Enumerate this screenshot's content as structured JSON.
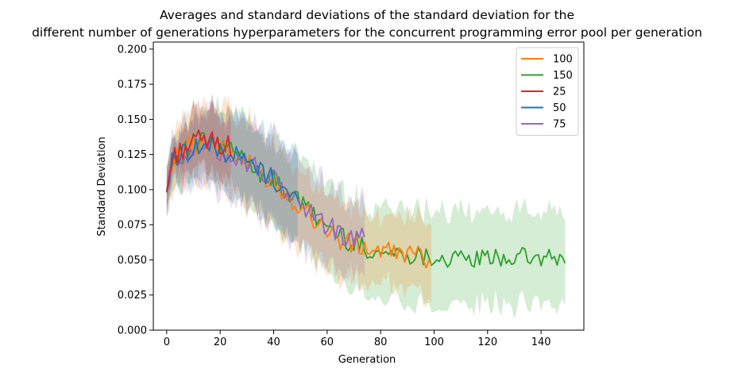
{
  "chart_data": {
    "type": "line",
    "title_line1": "Averages and standard deviations of the standard deviation for the",
    "title_line2": "different number of generations hyperparameters for the concurrent programming error pool per generation",
    "xlabel": "Generation",
    "ylabel": "Standard Deviation",
    "xlim": [
      -5,
      156
    ],
    "ylim": [
      0,
      0.205
    ],
    "xticks": [
      0,
      20,
      40,
      60,
      80,
      100,
      120,
      140
    ],
    "xtick_labels": [
      "0",
      "20",
      "40",
      "60",
      "80",
      "100",
      "120",
      "140"
    ],
    "yticks": [
      0,
      0.025,
      0.05,
      0.075,
      0.1,
      0.125,
      0.15,
      0.175,
      0.2
    ],
    "ytick_labels": [
      "0.000",
      "0.025",
      "0.050",
      "0.075",
      "0.100",
      "0.125",
      "0.150",
      "0.175",
      "0.200"
    ],
    "grid": false,
    "legend_position": "top-right",
    "series": [
      {
        "name": "100",
        "color": "#ff7f0e",
        "generations": 100,
        "key_points": [
          [
            0,
            0.098
          ],
          [
            2,
            0.12
          ],
          [
            5,
            0.127
          ],
          [
            10,
            0.133
          ],
          [
            15,
            0.135
          ],
          [
            20,
            0.13
          ],
          [
            25,
            0.125
          ],
          [
            30,
            0.118
          ],
          [
            35,
            0.112
          ],
          [
            40,
            0.105
          ],
          [
            45,
            0.097
          ],
          [
            50,
            0.089
          ],
          [
            55,
            0.08
          ],
          [
            60,
            0.072
          ],
          [
            65,
            0.064
          ],
          [
            70,
            0.06
          ],
          [
            75,
            0.058
          ],
          [
            80,
            0.056
          ],
          [
            90,
            0.055
          ],
          [
            99,
            0.05
          ]
        ],
        "std_key_points": [
          [
            0,
            0.014
          ],
          [
            5,
            0.02
          ],
          [
            15,
            0.028
          ],
          [
            30,
            0.03
          ],
          [
            45,
            0.028
          ],
          [
            60,
            0.026
          ],
          [
            75,
            0.024
          ],
          [
            90,
            0.024
          ],
          [
            99,
            0.024
          ]
        ]
      },
      {
        "name": "150",
        "color": "#2ca02c",
        "generations": 150,
        "key_points": [
          [
            0,
            0.098
          ],
          [
            2,
            0.12
          ],
          [
            5,
            0.125
          ],
          [
            10,
            0.132
          ],
          [
            15,
            0.134
          ],
          [
            20,
            0.131
          ],
          [
            25,
            0.126
          ],
          [
            30,
            0.12
          ],
          [
            35,
            0.113
          ],
          [
            40,
            0.106
          ],
          [
            45,
            0.098
          ],
          [
            50,
            0.09
          ],
          [
            55,
            0.082
          ],
          [
            60,
            0.074
          ],
          [
            65,
            0.067
          ],
          [
            70,
            0.062
          ],
          [
            75,
            0.058
          ],
          [
            80,
            0.055
          ],
          [
            90,
            0.054
          ],
          [
            100,
            0.052
          ],
          [
            110,
            0.05
          ],
          [
            120,
            0.051
          ],
          [
            130,
            0.052
          ],
          [
            140,
            0.051
          ],
          [
            149,
            0.05
          ]
        ],
        "std_key_points": [
          [
            0,
            0.014
          ],
          [
            10,
            0.022
          ],
          [
            30,
            0.03
          ],
          [
            50,
            0.03
          ],
          [
            75,
            0.032
          ],
          [
            100,
            0.034
          ],
          [
            120,
            0.034
          ],
          [
            149,
            0.034
          ]
        ]
      },
      {
        "name": "25",
        "color": "#d62728",
        "generations": 25,
        "key_points": [
          [
            0,
            0.099
          ],
          [
            2,
            0.121
          ],
          [
            5,
            0.128
          ],
          [
            10,
            0.134
          ],
          [
            15,
            0.135
          ],
          [
            20,
            0.133
          ],
          [
            24,
            0.13
          ]
        ],
        "std_key_points": [
          [
            0,
            0.012
          ],
          [
            10,
            0.02
          ],
          [
            24,
            0.024
          ]
        ]
      },
      {
        "name": "50",
        "color": "#1f77b4",
        "generations": 50,
        "key_points": [
          [
            0,
            0.098
          ],
          [
            2,
            0.119
          ],
          [
            5,
            0.126
          ],
          [
            10,
            0.13
          ],
          [
            15,
            0.131
          ],
          [
            20,
            0.128
          ],
          [
            25,
            0.125
          ],
          [
            30,
            0.12
          ],
          [
            35,
            0.114
          ],
          [
            40,
            0.107
          ],
          [
            45,
            0.099
          ],
          [
            49,
            0.093
          ]
        ],
        "std_key_points": [
          [
            0,
            0.014
          ],
          [
            10,
            0.022
          ],
          [
            30,
            0.03
          ],
          [
            49,
            0.03
          ]
        ]
      },
      {
        "name": "75",
        "color": "#9467bd",
        "generations": 75,
        "key_points": [
          [
            0,
            0.098
          ],
          [
            2,
            0.118
          ],
          [
            5,
            0.124
          ],
          [
            10,
            0.128
          ],
          [
            15,
            0.13
          ],
          [
            20,
            0.128
          ],
          [
            25,
            0.125
          ],
          [
            30,
            0.12
          ],
          [
            35,
            0.113
          ],
          [
            40,
            0.106
          ],
          [
            45,
            0.098
          ],
          [
            50,
            0.09
          ],
          [
            55,
            0.082
          ],
          [
            60,
            0.075
          ],
          [
            65,
            0.068
          ],
          [
            70,
            0.064
          ],
          [
            74,
            0.065
          ]
        ],
        "std_key_points": [
          [
            0,
            0.014
          ],
          [
            10,
            0.022
          ],
          [
            30,
            0.032
          ],
          [
            50,
            0.03
          ],
          [
            74,
            0.026
          ]
        ]
      }
    ]
  }
}
